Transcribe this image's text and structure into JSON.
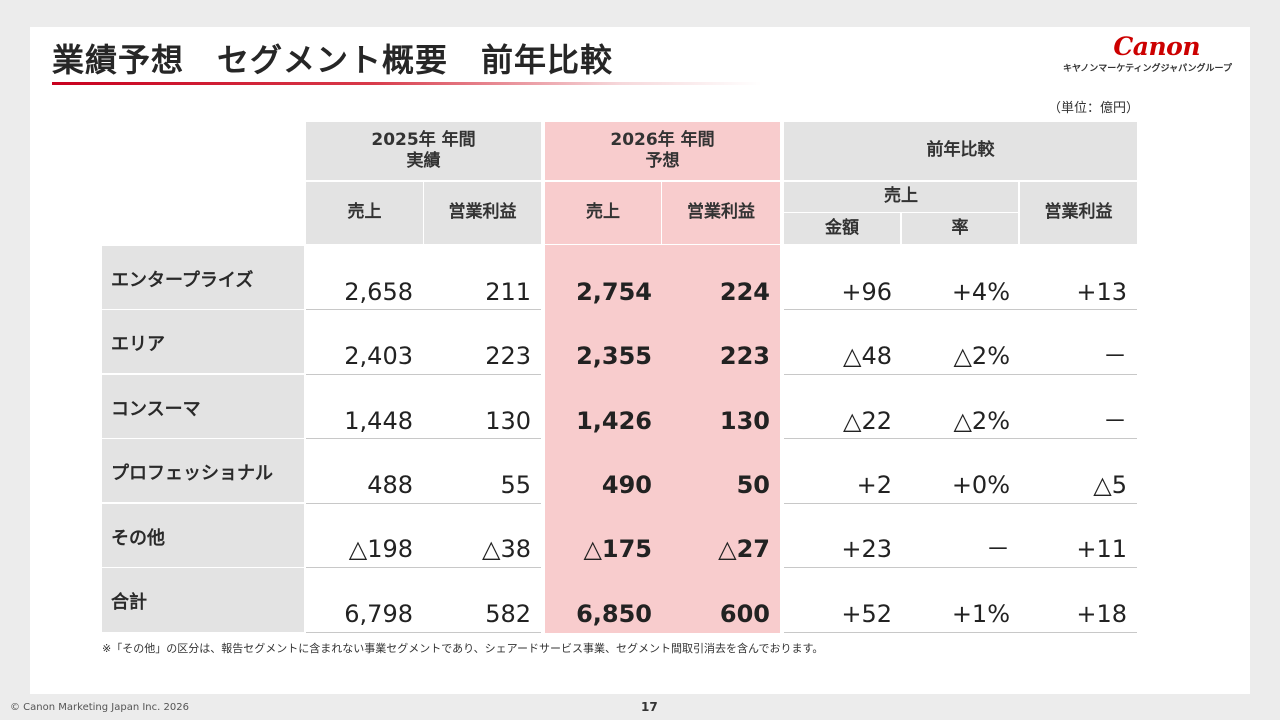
{
  "title": "業績予想　セグメント概要　前年比較",
  "logo": {
    "brand": "Canon",
    "subtitle": "キヤノンマーケティングジャパングループ"
  },
  "unit": "（単位：億円）",
  "headers": {
    "col1": "2025年 年間\n実績",
    "col2": "2026年 年間\n予想",
    "col3": "前年比較",
    "sales": "売上",
    "op_profit": "営業利益",
    "amount": "金額",
    "rate": "率"
  },
  "rows": [
    {
      "label": "エンタープライズ",
      "v2025_sales": "2,658",
      "v2025_op": "211",
      "v2026_sales": "2,754",
      "v2026_op": "224",
      "diff_amount": "+96",
      "diff_rate": "+4%",
      "diff_op": "+13"
    },
    {
      "label": "エリア",
      "v2025_sales": "2,403",
      "v2025_op": "223",
      "v2026_sales": "2,355",
      "v2026_op": "223",
      "diff_amount": "△48",
      "diff_rate": "△2%",
      "diff_op": "－"
    },
    {
      "label": "コンスーマ",
      "v2025_sales": "1,448",
      "v2025_op": "130",
      "v2026_sales": "1,426",
      "v2026_op": "130",
      "diff_amount": "△22",
      "diff_rate": "△2%",
      "diff_op": "－"
    },
    {
      "label": "プロフェッショナル",
      "v2025_sales": "488",
      "v2025_op": "55",
      "v2026_sales": "490",
      "v2026_op": "50",
      "diff_amount": "+2",
      "diff_rate": "+0%",
      "diff_op": "△5"
    },
    {
      "label": "その他",
      "v2025_sales": "△198",
      "v2025_op": "△38",
      "v2026_sales": "△175",
      "v2026_op": "△27",
      "diff_amount": "+23",
      "diff_rate": "－",
      "diff_op": "+11"
    },
    {
      "label": " 合計",
      "v2025_sales": "6,798",
      "v2025_op": "582",
      "v2026_sales": "6,850",
      "v2026_op": "600",
      "diff_amount": "+52",
      "diff_rate": "+1%",
      "diff_op": "+18"
    }
  ],
  "note": "※「その他」の区分は、報告セグメントに含まれない事業セグメントであり、シェアードサービス事業、セグメント間取引消去を含んでおります。",
  "footer": {
    "copyright": "© Canon Marketing Japan Inc. 2026",
    "page": "17"
  }
}
